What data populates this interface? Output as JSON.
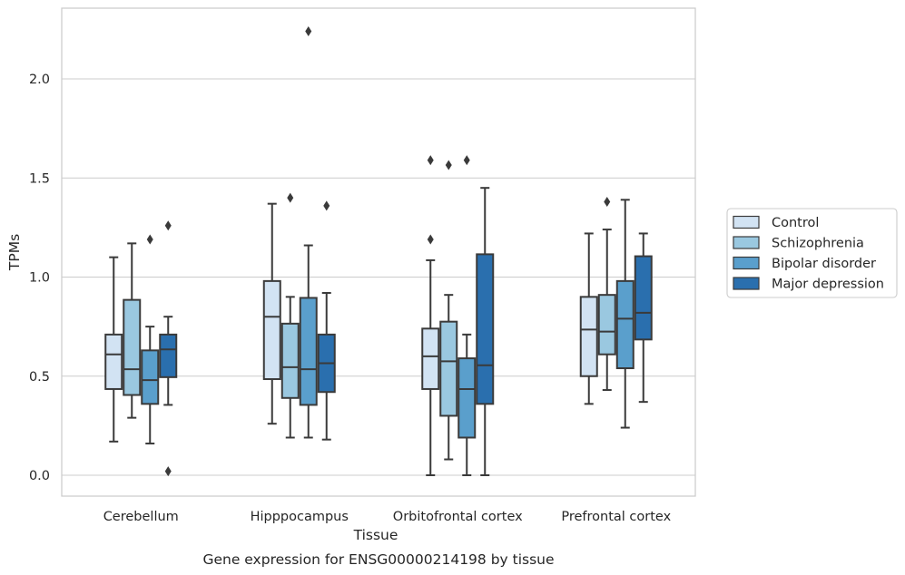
{
  "caption": "Gene expression for ENSG00000214198 by tissue",
  "chart_data": {
    "type": "boxplot",
    "xlabel": "Tissue",
    "ylabel": "TPMs",
    "ylim": [
      -0.1,
      2.37
    ],
    "yticks": [
      0.0,
      0.5,
      1.0,
      1.5,
      2.0
    ],
    "ytick_labels": [
      "0.0",
      "0.5",
      "1.0",
      "1.5",
      "2.0"
    ],
    "grid": "horizontal",
    "legend_placement": "right-outside",
    "categories": [
      "Cerebellum",
      "Hipppocampus",
      "Orbitofrontal cortex",
      "Prefrontal cortex"
    ],
    "series": [
      {
        "name": "Control",
        "color": "#d2e3f3",
        "boxes": [
          {
            "whislo": 0.17,
            "q1": 0.435,
            "med": 0.61,
            "q3": 0.71,
            "whishi": 1.1,
            "fliers": []
          },
          {
            "whislo": 0.26,
            "q1": 0.485,
            "med": 0.8,
            "q3": 0.98,
            "whishi": 1.37,
            "fliers": []
          },
          {
            "whislo": 0.0,
            "q1": 0.435,
            "med": 0.6,
            "q3": 0.74,
            "whishi": 1.085,
            "fliers": [
              1.19,
              1.59
            ]
          },
          {
            "whislo": 0.36,
            "q1": 0.5,
            "med": 0.735,
            "q3": 0.9,
            "whishi": 1.22,
            "fliers": []
          }
        ]
      },
      {
        "name": "Schizophrenia",
        "color": "#9ac8e0",
        "boxes": [
          {
            "whislo": 0.29,
            "q1": 0.405,
            "med": 0.535,
            "q3": 0.885,
            "whishi": 1.17,
            "fliers": []
          },
          {
            "whislo": 0.19,
            "q1": 0.39,
            "med": 0.545,
            "q3": 0.765,
            "whishi": 0.9,
            "fliers": [
              1.4
            ]
          },
          {
            "whislo": 0.08,
            "q1": 0.3,
            "med": 0.575,
            "q3": 0.775,
            "whishi": 0.91,
            "fliers": [
              1.565
            ]
          },
          {
            "whislo": 0.43,
            "q1": 0.61,
            "med": 0.725,
            "q3": 0.91,
            "whishi": 1.24,
            "fliers": [
              1.38
            ]
          }
        ]
      },
      {
        "name": "Bipolar disorder",
        "color": "#5a9fcc",
        "boxes": [
          {
            "whislo": 0.16,
            "q1": 0.36,
            "med": 0.48,
            "q3": 0.63,
            "whishi": 0.75,
            "fliers": [
              1.19
            ]
          },
          {
            "whislo": 0.19,
            "q1": 0.355,
            "med": 0.535,
            "q3": 0.895,
            "whishi": 1.16,
            "fliers": [
              2.24
            ]
          },
          {
            "whislo": 0.0,
            "q1": 0.19,
            "med": 0.435,
            "q3": 0.59,
            "whishi": 0.71,
            "fliers": [
              1.59
            ]
          },
          {
            "whislo": 0.24,
            "q1": 0.54,
            "med": 0.79,
            "q3": 0.98,
            "whishi": 1.39,
            "fliers": []
          }
        ]
      },
      {
        "name": "Major depression",
        "color": "#2a6fae",
        "boxes": [
          {
            "whislo": 0.355,
            "q1": 0.495,
            "med": 0.635,
            "q3": 0.71,
            "whishi": 0.8,
            "fliers": [
              1.26,
              0.02
            ]
          },
          {
            "whislo": 0.18,
            "q1": 0.42,
            "med": 0.565,
            "q3": 0.71,
            "whishi": 0.92,
            "fliers": [
              1.36
            ]
          },
          {
            "whislo": 0.0,
            "q1": 0.36,
            "med": 0.555,
            "q3": 1.115,
            "whishi": 1.45,
            "fliers": []
          },
          {
            "whislo": 0.37,
            "q1": 0.685,
            "med": 0.82,
            "q3": 1.105,
            "whishi": 1.22,
            "fliers": []
          }
        ]
      }
    ]
  }
}
